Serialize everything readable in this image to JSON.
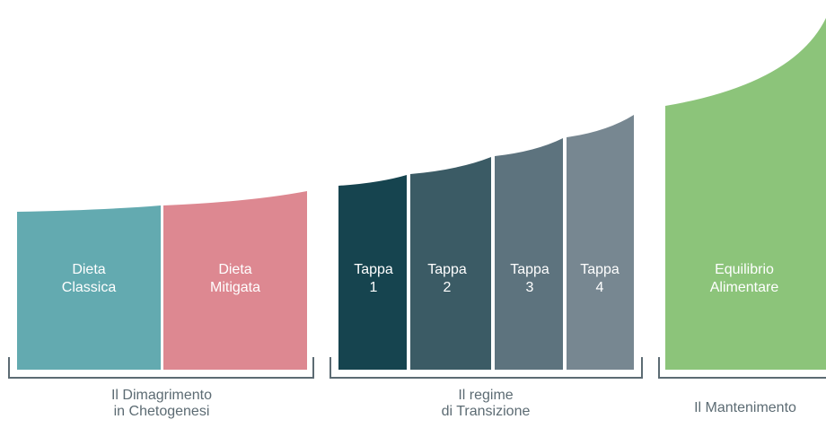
{
  "colors": {
    "teal": "#63aab0",
    "pink": "#dd8891",
    "dark_teal": "#16444f",
    "slate_1": "#3b5b65",
    "slate_2": "#5d737e",
    "slate_3": "#778791",
    "green": "#8cc47a",
    "bracket": "#5c6b73"
  },
  "groups": [
    {
      "label_line1": "Il Dimagrimento",
      "label_line2": "in Chetogenesi",
      "segments": [
        {
          "line1": "Dieta",
          "line2": "Classica",
          "color": "teal"
        },
        {
          "line1": "Dieta",
          "line2": "Mitigata",
          "color": "pink"
        }
      ]
    },
    {
      "label_line1": "Il regime",
      "label_line2": "di Transizione",
      "segments": [
        {
          "line1": "Tappa",
          "line2": "1",
          "color": "dark_teal"
        },
        {
          "line1": "Tappa",
          "line2": "2",
          "color": "slate_1"
        },
        {
          "line1": "Tappa",
          "line2": "3",
          "color": "slate_2"
        },
        {
          "line1": "Tappa",
          "line2": "4",
          "color": "slate_3"
        }
      ]
    },
    {
      "label_line1": "Il Mantenimento",
      "label_line2": "",
      "segments": [
        {
          "line1": "Equilibrio",
          "line2": "Alimentare",
          "color": "green"
        }
      ]
    }
  ]
}
